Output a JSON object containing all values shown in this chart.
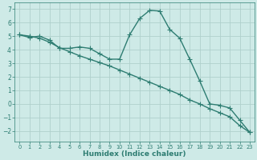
{
  "xlabel": "Humidex (Indice chaleur)",
  "background_color": "#ceeae7",
  "grid_color": "#b0d0cc",
  "line_color": "#2e7d72",
  "x_line1": [
    0,
    1,
    2,
    3,
    4,
    5,
    6,
    7,
    8,
    9,
    10,
    11,
    12,
    13,
    14,
    15,
    16,
    17,
    18,
    19,
    20,
    21,
    22,
    23
  ],
  "y_line1": [
    5.1,
    4.9,
    5.0,
    4.7,
    4.1,
    4.1,
    4.2,
    4.1,
    3.7,
    3.3,
    3.3,
    5.1,
    6.3,
    6.9,
    6.85,
    5.5,
    4.85,
    3.3,
    1.7,
    0.0,
    -0.1,
    -0.3,
    -1.2,
    -2.1
  ],
  "x_line2": [
    0,
    1,
    2,
    3,
    4,
    5,
    6,
    7,
    8,
    9,
    10,
    11,
    12,
    13,
    14,
    15,
    16,
    17,
    18,
    19,
    20,
    21,
    22,
    23
  ],
  "y_line2": [
    5.1,
    5.0,
    4.85,
    4.55,
    4.15,
    3.85,
    3.55,
    3.3,
    3.05,
    2.8,
    2.5,
    2.2,
    1.9,
    1.6,
    1.3,
    1.0,
    0.7,
    0.3,
    0.0,
    -0.35,
    -0.65,
    -0.95,
    -1.6,
    -2.1
  ],
  "ylim": [
    -2.8,
    7.5
  ],
  "xlim": [
    -0.5,
    23.5
  ],
  "yticks": [
    -2,
    -1,
    0,
    1,
    2,
    3,
    4,
    5,
    6,
    7
  ],
  "xtick_labels": [
    "0",
    "1",
    "2",
    "3",
    "4",
    "5",
    "6",
    "7",
    "8",
    "9",
    "10",
    "11",
    "12",
    "13",
    "14",
    "15",
    "16",
    "17",
    "18",
    "19",
    "20",
    "21",
    "22",
    "23"
  ],
  "marker": "+",
  "markersize": 4,
  "linewidth": 1.0
}
